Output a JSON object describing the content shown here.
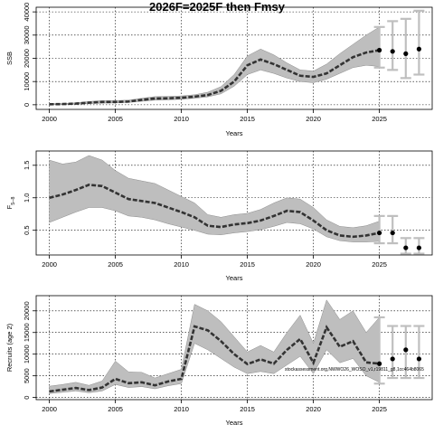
{
  "title": "2026F=2025F then Fmsy",
  "colors": {
    "band": "#bebebe",
    "band_edge": "#8c8c8c",
    "line": "#333333",
    "proj_bar": "#bfbfbf",
    "grid": "#000000"
  },
  "chart_data": [
    {
      "type": "line",
      "xlabel": "Years",
      "ylabel": "SSB",
      "xlim": [
        1999,
        2029
      ],
      "ylim": [
        -2000,
        42000
      ],
      "xticks": [
        2000,
        2005,
        2010,
        2015,
        2020,
        2025
      ],
      "yticks": [
        0,
        10000,
        20000,
        30000,
        40000
      ],
      "grid": true,
      "x": [
        2000,
        2001,
        2002,
        2003,
        2004,
        2005,
        2006,
        2007,
        2008,
        2009,
        2010,
        2011,
        2012,
        2013,
        2014,
        2015,
        2016,
        2017,
        2018,
        2019,
        2020,
        2021,
        2022,
        2023,
        2024,
        2025
      ],
      "series": [
        {
          "values": [
            200,
            300,
            500,
            900,
            1200,
            1200,
            1400,
            2100,
            2700,
            2800,
            3000,
            3500,
            4200,
            6000,
            10000,
            17000,
            19500,
            17500,
            15000,
            12500,
            12000,
            13500,
            17000,
            20500,
            22500,
            23500
          ],
          "lower": [
            100,
            200,
            300,
            500,
            700,
            800,
            1000,
            1500,
            2000,
            2100,
            2400,
            2800,
            3400,
            4700,
            8000,
            13000,
            15000,
            13500,
            11500,
            10000,
            9500,
            11000,
            13500,
            16000,
            17000,
            16500
          ],
          "upper": [
            400,
            500,
            800,
            1400,
            1800,
            1800,
            2000,
            2800,
            3500,
            3600,
            3800,
            4300,
            5400,
            7800,
            13000,
            21000,
            24000,
            21500,
            18000,
            15000,
            14500,
            17500,
            22000,
            26000,
            30000,
            33500
          ]
        }
      ],
      "projections": [
        {
          "x": 2025,
          "value": 23500,
          "lower": 16000,
          "upper": 33500
        },
        {
          "x": 2026,
          "value": 23000,
          "lower": 15000,
          "upper": 36000
        },
        {
          "x": 2027,
          "value": 22000,
          "lower": 11500,
          "upper": 37000
        },
        {
          "x": 2028,
          "value": 24000,
          "lower": 13000,
          "upper": 40500
        }
      ]
    },
    {
      "type": "line",
      "xlabel": "Years",
      "ylabel": "F",
      "ylabel_sub": "5–8",
      "xlim": [
        1999,
        2029
      ],
      "ylim": [
        0.12,
        1.72
      ],
      "xticks": [
        2000,
        2005,
        2010,
        2015,
        2020,
        2025
      ],
      "yticks": [
        0.5,
        1.0,
        1.5
      ],
      "ytick_labels": [
        "0.5",
        "1.0",
        "1.5"
      ],
      "grid": true,
      "x": [
        2000,
        2001,
        2002,
        2003,
        2004,
        2005,
        2006,
        2007,
        2008,
        2009,
        2010,
        2011,
        2012,
        2013,
        2014,
        2015,
        2016,
        2017,
        2018,
        2019,
        2020,
        2021,
        2022,
        2023,
        2024,
        2025
      ],
      "series": [
        {
          "values": [
            1.0,
            1.05,
            1.12,
            1.2,
            1.18,
            1.08,
            0.98,
            0.95,
            0.92,
            0.85,
            0.78,
            0.7,
            0.57,
            0.55,
            0.59,
            0.61,
            0.65,
            0.72,
            0.8,
            0.78,
            0.65,
            0.5,
            0.42,
            0.4,
            0.42,
            0.46
          ],
          "lower": [
            0.62,
            0.7,
            0.78,
            0.85,
            0.85,
            0.8,
            0.72,
            0.7,
            0.66,
            0.6,
            0.55,
            0.5,
            0.44,
            0.43,
            0.46,
            0.48,
            0.51,
            0.56,
            0.62,
            0.6,
            0.52,
            0.4,
            0.34,
            0.32,
            0.32,
            0.33
          ],
          "upper": [
            1.58,
            1.52,
            1.55,
            1.65,
            1.58,
            1.42,
            1.3,
            1.26,
            1.22,
            1.12,
            1.02,
            0.92,
            0.74,
            0.7,
            0.74,
            0.76,
            0.82,
            0.92,
            1.0,
            0.98,
            0.85,
            0.66,
            0.56,
            0.54,
            0.57,
            0.64
          ]
        }
      ],
      "projections": [
        {
          "x": 2025,
          "value": 0.46,
          "lower": 0.3,
          "upper": 0.72
        },
        {
          "x": 2026,
          "value": 0.46,
          "lower": 0.3,
          "upper": 0.72
        },
        {
          "x": 2027,
          "value": 0.23,
          "lower": 0.14,
          "upper": 0.38
        },
        {
          "x": 2028,
          "value": 0.23,
          "lower": 0.14,
          "upper": 0.38
        }
      ]
    },
    {
      "type": "line",
      "xlabel": "Years",
      "ylabel": "Recruits (age 2)",
      "xlim": [
        1999,
        2029
      ],
      "ylim": [
        -500,
        23500
      ],
      "xticks": [
        2000,
        2005,
        2010,
        2015,
        2020,
        2025
      ],
      "yticks": [
        0,
        5000,
        10000,
        15000,
        20000
      ],
      "grid": true,
      "annotation": "stockassessment.org,NWWO26_WOSO_v1,r19811_g8,1cc464b8065",
      "x": [
        2000,
        2001,
        2002,
        2003,
        2004,
        2005,
        2006,
        2007,
        2008,
        2009,
        2010,
        2011,
        2012,
        2013,
        2014,
        2015,
        2016,
        2017,
        2018,
        2019,
        2020,
        2021,
        2022,
        2023,
        2024,
        2025
      ],
      "series": [
        {
          "values": [
            1400,
            1800,
            2200,
            1700,
            2300,
            4300,
            3300,
            3500,
            2800,
            3700,
            4300,
            16400,
            15500,
            13000,
            10000,
            7700,
            8800,
            7800,
            11000,
            13500,
            8000,
            16200,
            11700,
            13000,
            8100,
            7800
          ],
          "lower": [
            900,
            1200,
            1500,
            1100,
            1500,
            3000,
            2300,
            2500,
            2000,
            2700,
            3200,
            12500,
            11000,
            9000,
            7000,
            5500,
            6000,
            5500,
            7500,
            9500,
            5500,
            11000,
            8000,
            9000,
            5000,
            3500
          ],
          "upper": [
            2600,
            3000,
            3500,
            2800,
            3800,
            8400,
            5900,
            5800,
            4500,
            5500,
            6500,
            21500,
            20000,
            17500,
            14000,
            10500,
            12000,
            10500,
            15000,
            19000,
            12500,
            22500,
            18000,
            20000,
            15000,
            18500
          ]
        }
      ],
      "projections": [
        {
          "x": 2025,
          "value": 7800,
          "lower": 3200,
          "upper": 18500
        },
        {
          "x": 2026,
          "value": 8900,
          "lower": 4500,
          "upper": 16500
        },
        {
          "x": 2027,
          "value": 11000,
          "lower": 4500,
          "upper": 16500
        },
        {
          "x": 2028,
          "value": 8900,
          "lower": 4500,
          "upper": 16500
        }
      ]
    }
  ]
}
